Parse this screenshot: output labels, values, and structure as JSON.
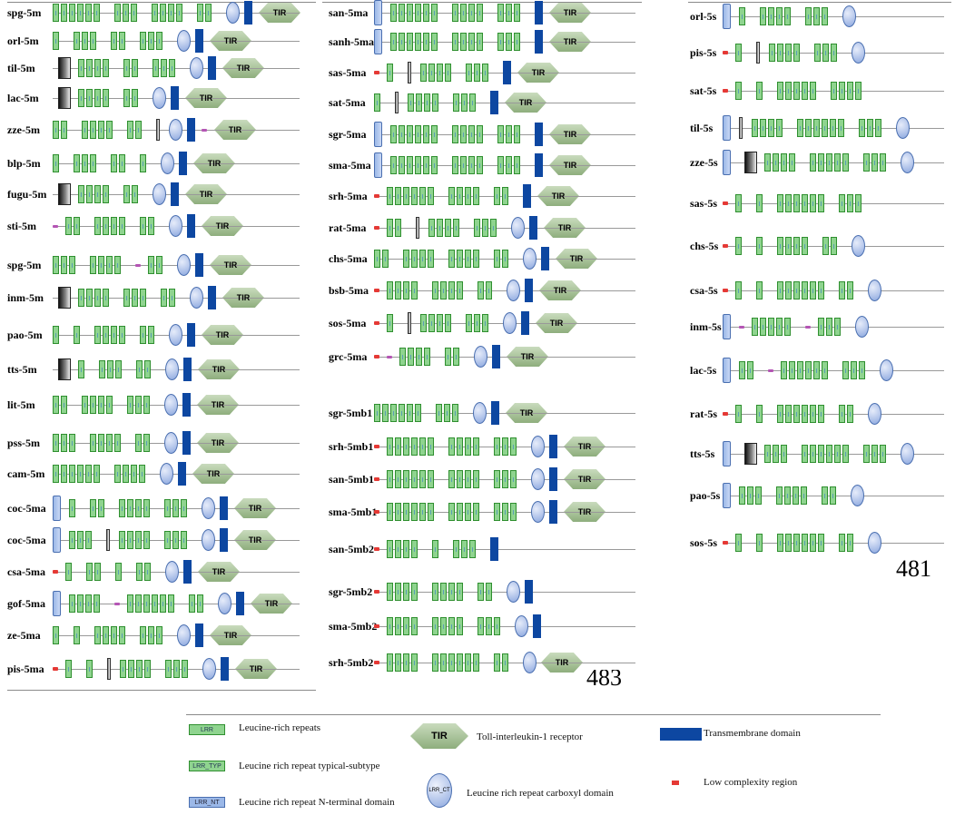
{
  "columns": [
    {
      "proteins": [
        "spg-5m",
        "orl-5m",
        "til-5m",
        "lac-5m",
        "zze-5m",
        "blp-5m",
        "fugu-5m",
        "sti-5m",
        "spg-5m",
        "inm-5m",
        "pao-5m",
        "tts-5m",
        "lit-5m",
        "pss-5m",
        "cam-5m",
        "coc-5ma",
        "coc-5ma",
        "csa-5ma",
        "gof-5ma",
        "ze-5ma",
        "pis-5ma"
      ]
    },
    {
      "proteins": [
        "san-5ma",
        "sanh-5ma",
        "sas-5ma",
        "sat-5ma",
        "sgr-5ma",
        "sma-5ma",
        "srh-5ma",
        "rat-5ma",
        "chs-5ma",
        "bsb-5ma",
        "sos-5ma",
        "grc-5ma",
        "sgr-5mb1",
        "srh-5mb1",
        "san-5mb1",
        "sma-5mb1",
        "san-5mb2",
        "sgr-5mb2",
        "sma-5mb2",
        "srh-5mb2"
      ]
    },
    {
      "proteins": [
        "orl-5s",
        "pis-5s",
        "sat-5s",
        "til-5s",
        "zze-5s",
        "sas-5s",
        "chs-5s",
        "csa-5s",
        "inm-5s",
        "lac-5s",
        "rat-5s",
        "tts-5s",
        "pao-5s",
        "sos-5s"
      ]
    }
  ],
  "tir_label": "TIR",
  "page_numbers": {
    "p481": "481",
    "p483": "483"
  },
  "legend": {
    "lrr": {
      "badge": "LRR",
      "text": "Leucine-rich repeats"
    },
    "lrr_typ": {
      "badge": "LRR_TYP",
      "text": "Leucine rich repeat typical-subtype"
    },
    "lrr_nt": {
      "badge": "LRR_NT",
      "text": "Leucine rich repeat N-terminal domain"
    },
    "tir": {
      "badge": "TIR",
      "text": "Toll-interleukin-1 receptor"
    },
    "lrr_ct": {
      "badge": "LRR_CT",
      "text": "Leucine rich repeat carboxyl domain"
    },
    "tm": {
      "text": "Transmembrane domain"
    },
    "lc": {
      "text": "Low complexity region"
    }
  },
  "colors": {
    "lrr": "#8fd48f",
    "nt": "#9bb8e8",
    "tm": "#0d47a1",
    "tir": "#a9c49a",
    "lc": "#e53935"
  }
}
